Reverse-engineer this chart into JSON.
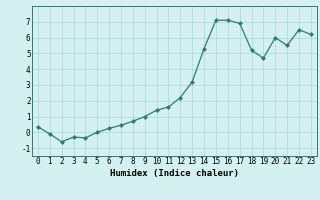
{
  "x": [
    0,
    1,
    2,
    3,
    4,
    5,
    6,
    7,
    8,
    9,
    10,
    11,
    12,
    13,
    14,
    15,
    16,
    17,
    18,
    19,
    20,
    21,
    22,
    23
  ],
  "y": [
    0.35,
    -0.1,
    -0.6,
    -0.3,
    -0.35,
    0.0,
    0.25,
    0.45,
    0.7,
    1.0,
    1.4,
    1.6,
    2.2,
    3.2,
    5.3,
    7.1,
    7.1,
    6.9,
    5.2,
    4.7,
    6.0,
    5.5,
    6.5,
    6.2
  ],
  "line_color": "#2e7d6e",
  "marker": "D",
  "marker_size": 2.0,
  "bg_color": "#d4f0f0",
  "grid_color": "#a8d8d8",
  "xlabel": "Humidex (Indice chaleur)",
  "xlim": [
    -0.5,
    23.5
  ],
  "ylim": [
    -1.5,
    8.0
  ],
  "yticks": [
    -1,
    0,
    1,
    2,
    3,
    4,
    5,
    6,
    7
  ],
  "xticks": [
    0,
    1,
    2,
    3,
    4,
    5,
    6,
    7,
    8,
    9,
    10,
    11,
    12,
    13,
    14,
    15,
    16,
    17,
    18,
    19,
    20,
    21,
    22,
    23
  ],
  "xlabel_fontsize": 6.5,
  "tick_fontsize": 5.5,
  "linewidth": 0.9
}
